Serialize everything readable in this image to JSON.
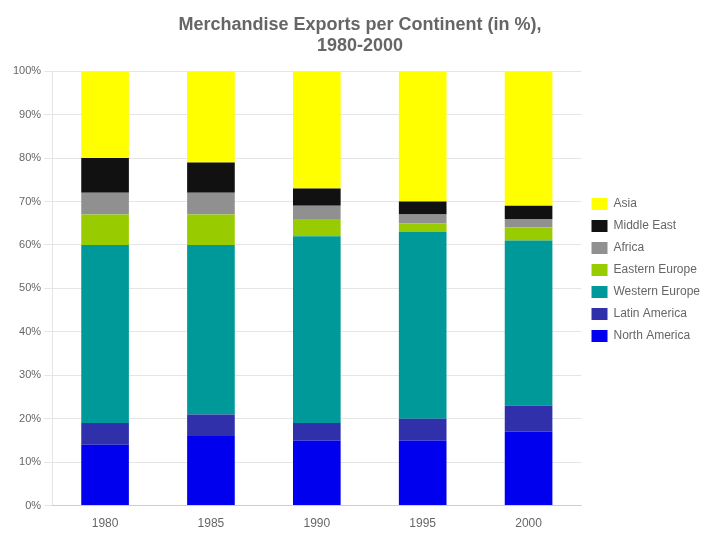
{
  "chart_data": {
    "type": "bar",
    "title": "Merchandise Exports per Continent (in %),\n1980-2000",
    "categories": [
      "1980",
      "1985",
      "1990",
      "1995",
      "2000"
    ],
    "series": [
      {
        "name": "North America",
        "color": "#0000EE",
        "values": [
          14,
          16,
          15,
          15,
          17
        ]
      },
      {
        "name": "Latin America",
        "color": "#3030AA",
        "values": [
          5,
          5,
          4,
          5,
          6
        ]
      },
      {
        "name": "Western Europe",
        "color": "#009999",
        "values": [
          41,
          39,
          43,
          43,
          38
        ]
      },
      {
        "name": "Eastern Europe",
        "color": "#99CC00",
        "values": [
          7,
          7,
          4,
          2,
          3
        ]
      },
      {
        "name": "Africa",
        "color": "#909090",
        "values": [
          5,
          5,
          3,
          2,
          2
        ]
      },
      {
        "name": "Middle East",
        "color": "#111111",
        "values": [
          8,
          7,
          4,
          3,
          3
        ]
      },
      {
        "name": "Asia",
        "color": "#FFFF00",
        "values": [
          20,
          21,
          27,
          30,
          31
        ]
      }
    ],
    "stacked": true,
    "ylim": [
      0,
      100
    ],
    "yticks": [
      {
        "value": 0,
        "label": "0%"
      },
      {
        "value": 10,
        "label": "10%"
      },
      {
        "value": 20,
        "label": "20%"
      },
      {
        "value": 30,
        "label": "30%"
      },
      {
        "value": 40,
        "label": "40%"
      },
      {
        "value": 50,
        "label": "50%"
      },
      {
        "value": 60,
        "label": "60%"
      },
      {
        "value": 70,
        "label": "70%"
      },
      {
        "value": 80,
        "label": "80%"
      },
      {
        "value": 90,
        "label": "90%"
      },
      {
        "value": 100,
        "label": "100%"
      }
    ],
    "grid": true,
    "legend": "right"
  }
}
